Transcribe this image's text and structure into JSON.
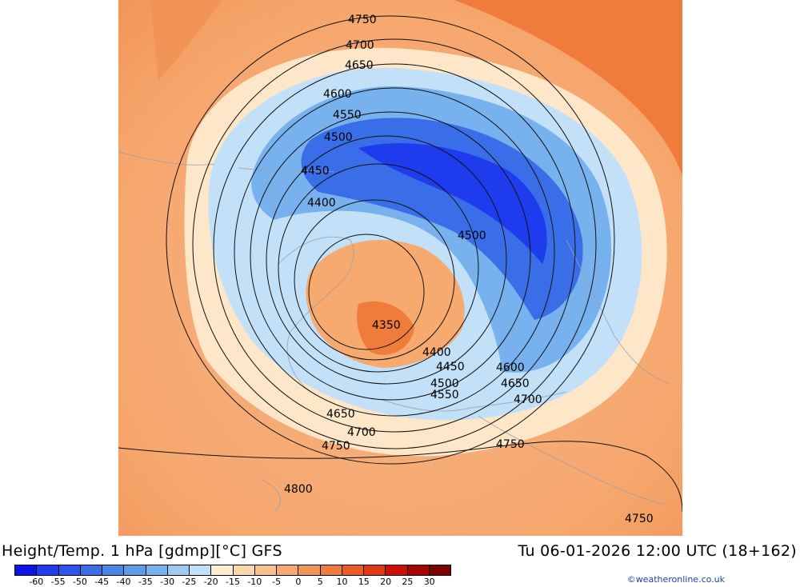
{
  "title": "Height/Temp. 1 hPa [gdmp][°C] GFS",
  "datetime": "Tu 06-01-2026 12:00 UTC (18+162)",
  "credit": "©weatheronline.co.uk",
  "colorbar": {
    "labels": [
      "-60",
      "-55",
      "-50",
      "-45",
      "-40",
      "-35",
      "-30",
      "-25",
      "-20",
      "-15",
      "-10",
      "-5",
      "0",
      "5",
      "10",
      "15",
      "20",
      "25",
      "30"
    ],
    "colors": [
      "#0a14e6",
      "#1e3cee",
      "#2d55ee",
      "#3a6ee8",
      "#4a86e6",
      "#5c9ce8",
      "#78b2ee",
      "#9ccaf4",
      "#c2e0f8",
      "#fcecd2",
      "#fcd6aa",
      "#f8c08c",
      "#f6aa70",
      "#f29456",
      "#f07c3c",
      "#ec5c22",
      "#e43812",
      "#cc1008",
      "#a80404",
      "#7c0202"
    ]
  },
  "map": {
    "contour_labels": [
      "4750",
      "4700",
      "4650",
      "4600",
      "4550",
      "4500",
      "4450",
      "4400",
      "4500",
      "4350",
      "4400",
      "4450",
      "4500",
      "4550",
      "4600",
      "4650",
      "4700",
      "4650",
      "4700",
      "4750",
      "4750",
      "4800",
      "4750"
    ]
  }
}
